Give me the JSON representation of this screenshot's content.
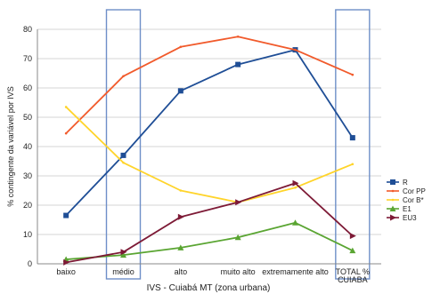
{
  "chart_data": {
    "type": "line",
    "title": "",
    "xlabel": "IVS - Cuiabá MT (zona urbana)",
    "ylabel": "% contingente da variável por IVS",
    "ylim": [
      0,
      80
    ],
    "yticks": [
      0,
      10,
      20,
      30,
      40,
      50,
      60,
      70,
      80
    ],
    "grid": true,
    "legend_position": "right",
    "categories": [
      "baixo",
      "médio",
      "alto",
      "muito alto",
      "extremamente alto",
      "TOTAL %\nCUIABA"
    ],
    "highlighted_categories": [
      "médio",
      "TOTAL %\nCUIABA"
    ],
    "series": [
      {
        "name": "R",
        "color": "#1f4e96",
        "marker": "square",
        "values": [
          16.5,
          37,
          59,
          68,
          73,
          43
        ]
      },
      {
        "name": "Cor PP",
        "color": "#f15a2b",
        "marker": "none",
        "values": [
          44.5,
          64,
          74,
          77.5,
          73,
          64.5
        ]
      },
      {
        "name": "Cor B*",
        "color": "#ffd42a",
        "marker": "none",
        "values": [
          53.5,
          34.5,
          25,
          21,
          26,
          34
        ]
      },
      {
        "name": "E1",
        "color": "#5aa532",
        "marker": "triangle",
        "values": [
          1.5,
          3,
          5.5,
          9,
          14,
          4.5
        ]
      },
      {
        "name": "EU3",
        "color": "#7d1a36",
        "marker": "arrow",
        "values": [
          0.5,
          4,
          16,
          21,
          27.5,
          9.5
        ]
      }
    ]
  }
}
